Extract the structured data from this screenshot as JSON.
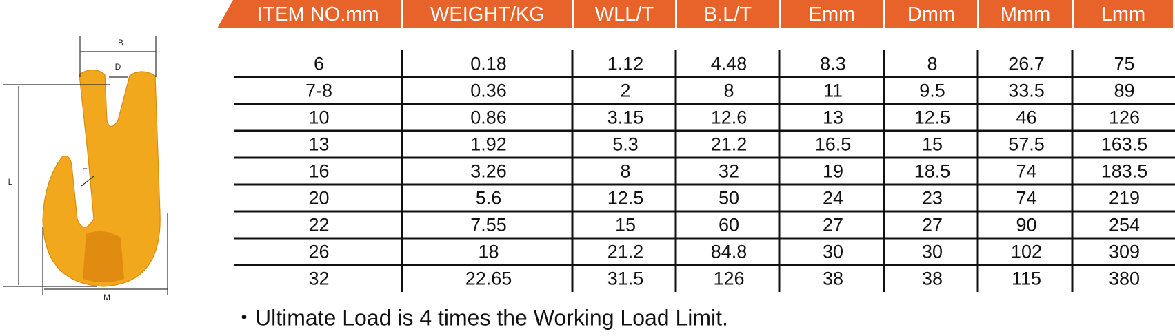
{
  "diagram": {
    "labels": [
      "B",
      "D",
      "L",
      "E",
      "M"
    ]
  },
  "table": {
    "header": [
      "ITEM NO.mm",
      "WEIGHT/KG",
      "WLL/T",
      "B.L/T",
      "Emm",
      "Dmm",
      "Mmm",
      "Lmm"
    ],
    "rows": [
      [
        "6",
        "0.18",
        "1.12",
        "4.48",
        "8.3",
        "8",
        "26.7",
        "75"
      ],
      [
        "7-8",
        "0.36",
        "2",
        "8",
        "11",
        "9.5",
        "33.5",
        "89"
      ],
      [
        "10",
        "0.86",
        "3.15",
        "12.6",
        "13",
        "12.5",
        "46",
        "126"
      ],
      [
        "13",
        "1.92",
        "5.3",
        "21.2",
        "16.5",
        "15",
        "57.5",
        "163.5"
      ],
      [
        "16",
        "3.26",
        "8",
        "32",
        "19",
        "18.5",
        "74",
        "183.5"
      ],
      [
        "20",
        "5.6",
        "12.5",
        "50",
        "24",
        "23",
        "74",
        "219"
      ],
      [
        "22",
        "7.55",
        "15",
        "60",
        "27",
        "27",
        "90",
        "254"
      ],
      [
        "26",
        "18",
        "21.2",
        "84.8",
        "30",
        "30",
        "102",
        "309"
      ],
      [
        "32",
        "22.65",
        "31.5",
        "126",
        "38",
        "38",
        "115",
        "380"
      ]
    ]
  },
  "note": "・Ultimate Load is 4 times the Working Load Limit."
}
